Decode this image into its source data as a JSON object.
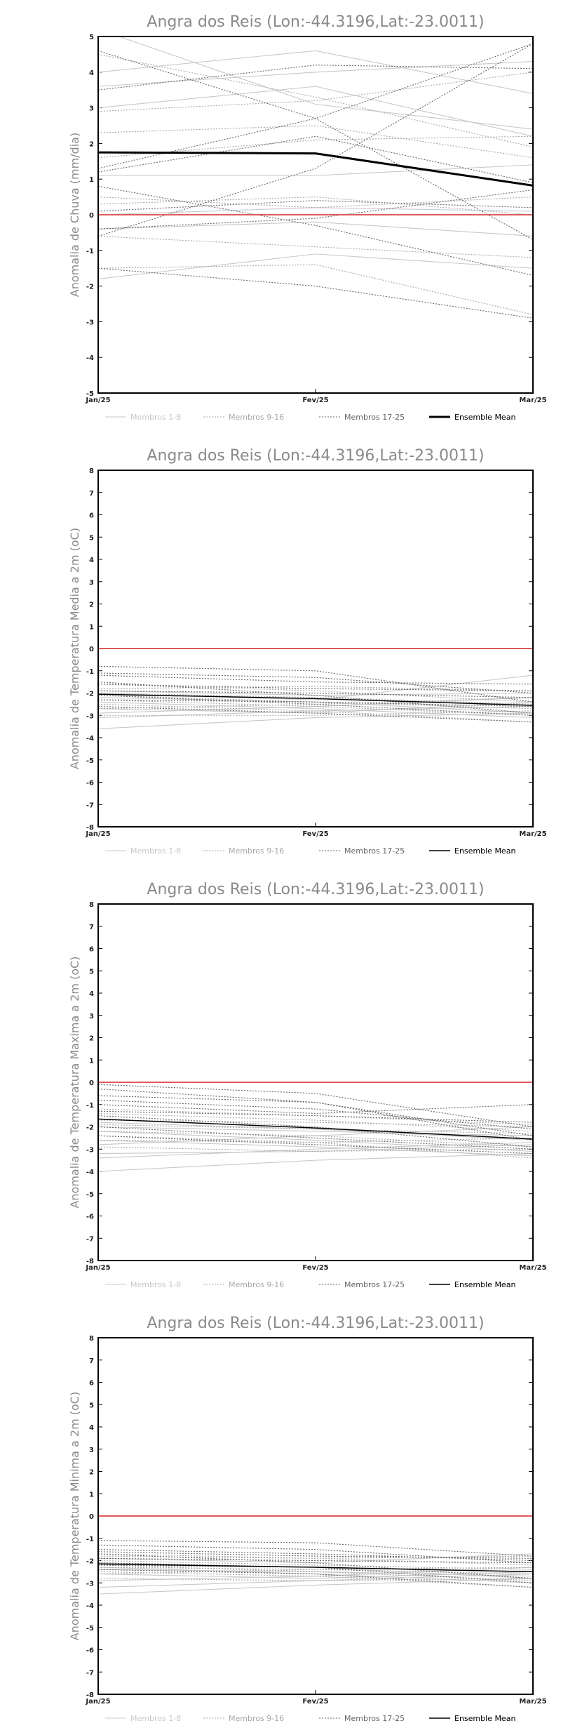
{
  "colors": {
    "members_1_8": "#c8c8c8",
    "members_9_16": "#a8a8a8",
    "members_17_25": "#666666",
    "ensemble_mean": "#000000",
    "zero_line": "#e05a5a",
    "frame": "#000000"
  },
  "chart_data": [
    {
      "type": "line",
      "title": "Angra dos Reis (Lon:-44.3196,Lat:-23.0011)",
      "xlabel": "",
      "ylabel": "Anomalia de Chuva (mm/dia)",
      "categories": [
        "Jan/25",
        "Fev/25",
        "Mar/25"
      ],
      "ylim": [
        -5,
        5
      ],
      "yticks": [
        -5,
        -4,
        -3,
        -2,
        -1,
        0,
        1,
        2,
        3,
        4,
        5
      ],
      "mean_width": 3,
      "legend": [
        "Membros 1-8",
        "Membros 9-16",
        "Membros 17-25",
        "Ensemble Mean"
      ],
      "groups": {
        "members_1_8": [
          [
            4.0,
            4.6,
            3.4
          ],
          [
            3.0,
            3.6,
            2.2
          ],
          [
            1.1,
            1.1,
            1.4
          ],
          [
            -1.8,
            -1.1,
            -1.5
          ],
          [
            0.0,
            0.2,
            0.1
          ],
          [
            5.2,
            3.1,
            2.4
          ],
          [
            3.6,
            4.0,
            4.3
          ],
          [
            -0.4,
            -0.2,
            -0.6
          ]
        ],
        "members_9_16": [
          [
            4.5,
            3.3,
            1.9
          ],
          [
            2.9,
            3.2,
            4.0
          ],
          [
            1.6,
            2.1,
            2.2
          ],
          [
            0.5,
            0.2,
            0.5
          ],
          [
            -0.6,
            -0.9,
            -1.2
          ],
          [
            2.3,
            2.5,
            1.6
          ],
          [
            0.3,
            0.5,
            0.0
          ],
          [
            -1.5,
            -1.4,
            -2.8
          ]
        ],
        "members_17_25": [
          [
            4.6,
            2.7,
            -0.7
          ],
          [
            1.3,
            2.7,
            4.8
          ],
          [
            -0.6,
            1.3,
            4.8
          ],
          [
            0.8,
            -0.3,
            -1.7
          ],
          [
            -0.4,
            -0.1,
            0.7
          ],
          [
            -1.5,
            -2.0,
            -2.9
          ],
          [
            0.1,
            0.4,
            0.2
          ],
          [
            3.5,
            4.2,
            4.1
          ],
          [
            1.2,
            2.2,
            0.9
          ]
        ],
        "ensemble_mean": [
          1.75,
          1.72,
          0.82
        ]
      }
    },
    {
      "type": "line",
      "title": "Angra dos Reis (Lon:-44.3196,Lat:-23.0011)",
      "xlabel": "",
      "ylabel": "Anomalia de Temperatura Media a 2m (oC)",
      "categories": [
        "Jan/25",
        "Fev/25",
        "Mar/25"
      ],
      "ylim": [
        -8,
        8
      ],
      "yticks": [
        -8,
        -7,
        -6,
        -5,
        -4,
        -3,
        -2,
        -1,
        0,
        1,
        2,
        3,
        4,
        5,
        6,
        7,
        8
      ],
      "mean_width": 1.5,
      "legend": [
        "Membros 1-8",
        "Membros 9-16",
        "Membros 17-25",
        "Ensemble Mean"
      ],
      "groups": {
        "members_1_8": [
          [
            -3.6,
            -3.1,
            -2.9
          ],
          [
            -2.9,
            -2.6,
            -2.2
          ],
          [
            -2.4,
            -2.7,
            -3.1
          ],
          [
            -2.0,
            -2.3,
            -1.2
          ],
          [
            -2.7,
            -2.9,
            -2.4
          ],
          [
            -2.2,
            -2.4,
            -2.9
          ],
          [
            -3.1,
            -2.8,
            -2.6
          ],
          [
            -1.9,
            -2.1,
            -2.0
          ]
        ],
        "members_9_16": [
          [
            -2.5,
            -2.8,
            -3.3
          ],
          [
            -2.0,
            -2.2,
            -2.5
          ],
          [
            -1.6,
            -1.9,
            -2.4
          ],
          [
            -3.0,
            -3.0,
            -2.8
          ],
          [
            -2.3,
            -2.6,
            -3.0
          ],
          [
            -1.8,
            -1.7,
            -1.9
          ],
          [
            -2.7,
            -2.5,
            -2.2
          ],
          [
            -2.1,
            -2.4,
            -2.7
          ]
        ],
        "members_17_25": [
          [
            -0.8,
            -1.0,
            -2.4
          ],
          [
            -1.2,
            -1.5,
            -1.6
          ],
          [
            -1.5,
            -2.1,
            -2.9
          ],
          [
            -2.1,
            -2.5,
            -3.0
          ],
          [
            -1.9,
            -2.0,
            -2.2
          ],
          [
            -2.6,
            -2.9,
            -3.3
          ],
          [
            -1.1,
            -1.3,
            -2.0
          ],
          [
            -2.3,
            -2.4,
            -2.6
          ],
          [
            -1.6,
            -1.8,
            -1.9
          ]
        ],
        "ensemble_mean": [
          -2.05,
          -2.25,
          -2.55
        ]
      }
    },
    {
      "type": "line",
      "title": "Angra dos Reis (Lon:-44.3196,Lat:-23.0011)",
      "xlabel": "",
      "ylabel": "Anomalia de Temperatura Maxima a 2m (oC)",
      "categories": [
        "Jan/25",
        "Fev/25",
        "Mar/25"
      ],
      "ylim": [
        -8,
        8
      ],
      "yticks": [
        -8,
        -7,
        -6,
        -5,
        -4,
        -3,
        -2,
        -1,
        0,
        1,
        2,
        3,
        4,
        5,
        6,
        7,
        8
      ],
      "mean_width": 1.5,
      "legend": [
        "Membros 1-8",
        "Membros 9-16",
        "Membros 17-25",
        "Ensemble Mean"
      ],
      "groups": {
        "members_1_8": [
          [
            -4.0,
            -3.5,
            -3.2
          ],
          [
            -2.8,
            -2.4,
            -2.0
          ],
          [
            -2.2,
            -2.6,
            -3.1
          ],
          [
            -3.2,
            -3.1,
            -2.8
          ],
          [
            -1.8,
            -2.1,
            -2.6
          ],
          [
            -2.6,
            -2.9,
            -3.3
          ],
          [
            -3.4,
            -3.0,
            -2.7
          ],
          [
            -2.0,
            -2.2,
            -2.4
          ]
        ],
        "members_9_16": [
          [
            -2.4,
            -2.7,
            -3.4
          ],
          [
            -1.9,
            -2.1,
            -2.3
          ],
          [
            -1.4,
            -1.7,
            -2.2
          ],
          [
            -2.9,
            -3.1,
            -3.0
          ],
          [
            -2.2,
            -2.4,
            -2.9
          ],
          [
            -1.7,
            -1.8,
            -2.0
          ],
          [
            -2.6,
            -2.7,
            -2.5
          ],
          [
            -1.2,
            -1.5,
            -1.9
          ]
        ],
        "members_17_25": [
          [
            -0.1,
            -0.5,
            -2.0
          ],
          [
            -0.6,
            -0.9,
            -2.4
          ],
          [
            -1.0,
            -1.4,
            -1.0
          ],
          [
            -1.5,
            -2.0,
            -2.9
          ],
          [
            -2.0,
            -2.5,
            -3.0
          ],
          [
            -2.4,
            -2.8,
            -3.2
          ],
          [
            -0.3,
            -0.9,
            -2.6
          ],
          [
            -1.3,
            -1.5,
            -1.8
          ],
          [
            -0.8,
            -1.2,
            -2.1
          ]
        ],
        "ensemble_mean": [
          -1.65,
          -2.05,
          -2.55
        ]
      }
    },
    {
      "type": "line",
      "title": "Angra dos Reis (Lon:-44.3196,Lat:-23.0011)",
      "xlabel": "",
      "ylabel": "Anomalia de Temperatura Minima a 2m (oC)",
      "categories": [
        "Jan/25",
        "Fev/25",
        "Mar/25"
      ],
      "ylim": [
        -8,
        8
      ],
      "yticks": [
        -8,
        -7,
        -6,
        -5,
        -4,
        -3,
        -2,
        -1,
        0,
        1,
        2,
        3,
        4,
        5,
        6,
        7,
        8
      ],
      "mean_width": 1.5,
      "legend": [
        "Membros 1-8",
        "Membros 9-16",
        "Membros 17-25",
        "Ensemble Mean"
      ],
      "groups": {
        "members_1_8": [
          [
            -3.5,
            -3.1,
            -2.8
          ],
          [
            -2.9,
            -2.7,
            -2.3
          ],
          [
            -2.3,
            -2.6,
            -3.0
          ],
          [
            -1.9,
            -2.1,
            -1.7
          ],
          [
            -2.6,
            -2.8,
            -2.5
          ],
          [
            -2.1,
            -2.3,
            -2.8
          ],
          [
            -3.2,
            -2.9,
            -2.6
          ],
          [
            -2.4,
            -2.5,
            -2.7
          ]
        ],
        "members_9_16": [
          [
            -2.5,
            -2.7,
            -3.2
          ],
          [
            -2.0,
            -2.2,
            -2.4
          ],
          [
            -1.7,
            -1.9,
            -2.2
          ],
          [
            -2.8,
            -2.9,
            -2.8
          ],
          [
            -2.2,
            -2.5,
            -2.9
          ],
          [
            -1.8,
            -1.9,
            -1.8
          ],
          [
            -2.6,
            -2.4,
            -2.3
          ],
          [
            -2.3,
            -2.4,
            -2.6
          ]
        ],
        "members_17_25": [
          [
            -1.1,
            -1.2,
            -1.8
          ],
          [
            -1.5,
            -1.7,
            -2.0
          ],
          [
            -1.7,
            -2.1,
            -2.8
          ],
          [
            -2.1,
            -2.3,
            -3.0
          ],
          [
            -1.9,
            -2.0,
            -2.1
          ],
          [
            -2.4,
            -2.6,
            -3.2
          ],
          [
            -1.3,
            -1.5,
            -2.1
          ],
          [
            -2.2,
            -2.3,
            -2.5
          ],
          [
            -1.6,
            -1.8,
            -1.9
          ]
        ],
        "ensemble_mean": [
          -2.15,
          -2.3,
          -2.5
        ]
      }
    }
  ]
}
